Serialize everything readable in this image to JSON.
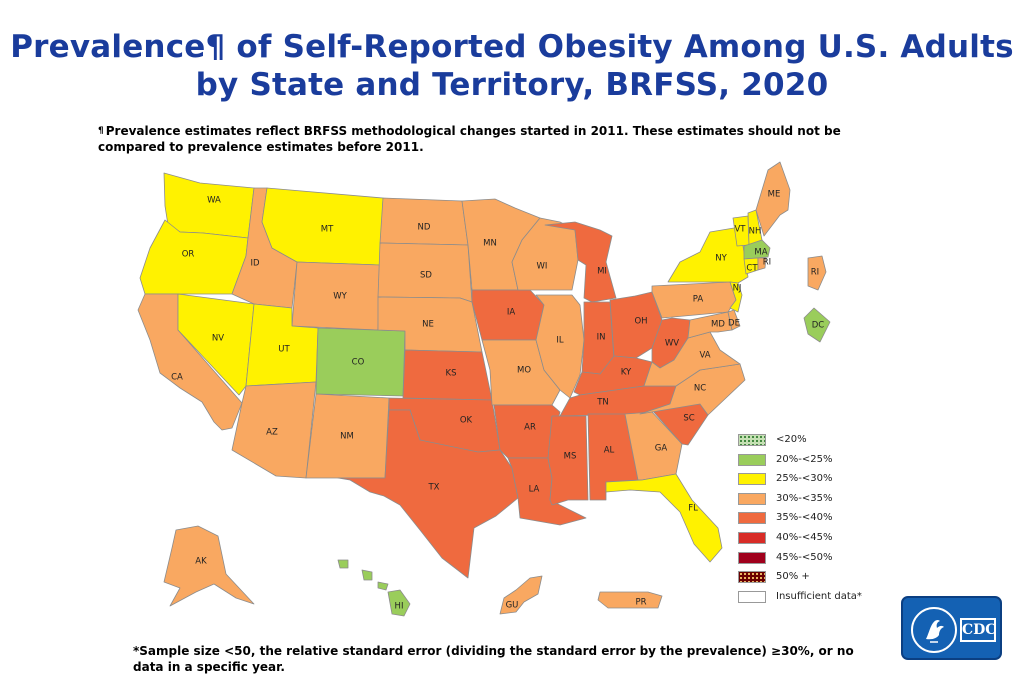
{
  "title": {
    "line1": "Prevalence¶ of Self-Reported Obesity Among U.S. Adults",
    "line2": "by State and Territory, BRFSS, 2020"
  },
  "footnote": {
    "symbol": "¶",
    "text": "Prevalence estimates reflect BRFSS methodological changes started in 2011. These estimates should not be compared to prevalence estimates before 2011."
  },
  "colors": {
    "lt20": "#c5e0b3",
    "b20_25": "#9acd5b",
    "b25_30": "#fff200",
    "b30_35": "#f9a861",
    "b35_40": "#ef6a3f",
    "b40_45": "#d82c27",
    "b45_50": "#a0001c",
    "gte50": "#6b0000",
    "insufficient": "#ffffff"
  },
  "legend": [
    {
      "key": "lt20",
      "label": "<20%",
      "pattern": "dots"
    },
    {
      "key": "b20_25",
      "label": "20%-<25%"
    },
    {
      "key": "b25_30",
      "label": "25%-<30%"
    },
    {
      "key": "b30_35",
      "label": "30%-<35%"
    },
    {
      "key": "b35_40",
      "label": "35%-<40%"
    },
    {
      "key": "b40_45",
      "label": "40%-<45%"
    },
    {
      "key": "b45_50",
      "label": "45%-<50%"
    },
    {
      "key": "gte50",
      "label": "50% +",
      "pattern": "dots-dark"
    },
    {
      "key": "insufficient",
      "label": "Insufficient data*"
    }
  ],
  "states": {
    "WA": "b25_30",
    "OR": "b25_30",
    "CA": "b30_35",
    "NV": "b25_30",
    "ID": "b30_35",
    "MT": "b25_30",
    "WY": "b30_35",
    "UT": "b25_30",
    "AZ": "b30_35",
    "CO": "b20_25",
    "NM": "b30_35",
    "ND": "b30_35",
    "SD": "b30_35",
    "NE": "b30_35",
    "KS": "b35_40",
    "OK": "b35_40",
    "TX": "b35_40",
    "MN": "b30_35",
    "IA": "b35_40",
    "MO": "b30_35",
    "AR": "b35_40",
    "LA": "b35_40",
    "WI": "b30_35",
    "IL": "b30_35",
    "MI": "b35_40",
    "IN": "b35_40",
    "OH": "b35_40",
    "KY": "b35_40",
    "TN": "b35_40",
    "MS": "b35_40",
    "AL": "b35_40",
    "GA": "b30_35",
    "FL": "b25_30",
    "SC": "b35_40",
    "NC": "b30_35",
    "VA": "b30_35",
    "WV": "b35_40",
    "PA": "b30_35",
    "NY": "b25_30",
    "VT": "b25_30",
    "NH": "b25_30",
    "ME": "b30_35",
    "MA": "b20_25",
    "RI": "b30_35",
    "CT": "b25_30",
    "NJ": "b25_30",
    "DE": "b30_35",
    "MD": "b30_35",
    "DC": "b20_25",
    "AK": "b30_35",
    "HI": "b20_25",
    "GU": "b30_35",
    "PR": "b30_35"
  },
  "bottom_note": "*Sample size <50, the relative standard error (dividing the standard error by the prevalence) ≥30%, or no data in a specific year.",
  "logo_text": "CDC"
}
